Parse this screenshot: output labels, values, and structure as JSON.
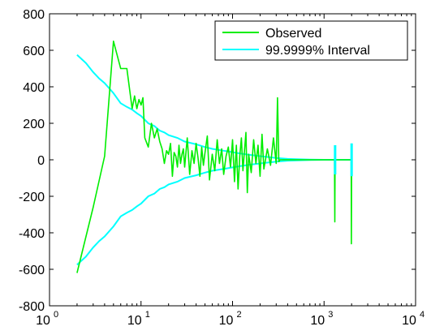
{
  "chart_data": {
    "type": "line",
    "title": "",
    "xlabel": "",
    "ylabel": "",
    "xscale": "log",
    "xlim": [
      1,
      10000
    ],
    "ylim": [
      -800,
      800
    ],
    "grid": false,
    "legend_position": "top-right",
    "x_ticks": [
      {
        "value": 1,
        "base": "10",
        "exp": "0"
      },
      {
        "value": 10,
        "base": "10",
        "exp": "1"
      },
      {
        "value": 100,
        "base": "10",
        "exp": "2"
      },
      {
        "value": 1000,
        "base": "10",
        "exp": "3"
      },
      {
        "value": 10000,
        "base": "10",
        "exp": "4"
      }
    ],
    "y_ticks": [
      {
        "value": 800,
        "label": "800"
      },
      {
        "value": 600,
        "label": "600"
      },
      {
        "value": 400,
        "label": "400"
      },
      {
        "value": 200,
        "label": "200"
      },
      {
        "value": 0,
        "label": "0"
      },
      {
        "value": -200,
        "label": "-200"
      },
      {
        "value": -400,
        "label": "-400"
      },
      {
        "value": -600,
        "label": "-600"
      },
      {
        "value": -800,
        "label": "-800"
      }
    ],
    "series": [
      {
        "name": "Observed",
        "color": "#00ee00",
        "x": [
          2,
          3,
          4,
          5,
          6,
          7,
          8,
          8.5,
          9,
          9.5,
          10,
          10.5,
          11,
          12,
          13,
          14,
          15,
          16,
          17,
          18,
          19,
          20,
          21,
          22,
          23,
          24,
          25,
          26,
          27,
          28,
          29,
          30,
          32,
          34,
          36,
          38,
          40,
          42,
          44,
          46,
          48,
          50,
          53,
          56,
          60,
          64,
          68,
          72,
          76,
          80,
          85,
          90,
          95,
          100,
          105,
          110,
          115,
          120,
          125,
          130,
          135,
          140,
          145,
          150,
          160,
          170,
          180,
          190,
          200,
          210,
          220,
          240,
          260,
          280,
          300,
          310,
          320,
          330,
          340,
          345,
          350,
          400,
          500,
          600,
          800,
          1000,
          1200,
          1300,
          1310,
          1320,
          1330,
          1340,
          1350,
          1360,
          1400,
          1600,
          1800,
          1980,
          1990,
          2000,
          2010,
          2020,
          2030,
          2040,
          2050
        ],
        "y": [
          -620,
          -260,
          20,
          650,
          500,
          500,
          280,
          350,
          280,
          330,
          300,
          340,
          120,
          70,
          200,
          120,
          170,
          100,
          60,
          -20,
          50,
          30,
          90,
          -90,
          40,
          20,
          -40,
          80,
          -20,
          30,
          60,
          -40,
          120,
          -80,
          50,
          -20,
          90,
          10,
          -90,
          70,
          -30,
          40,
          130,
          -110,
          30,
          -60,
          110,
          -20,
          60,
          -80,
          20,
          70,
          -40,
          110,
          -120,
          80,
          -160,
          20,
          120,
          -60,
          50,
          150,
          -180,
          30,
          -70,
          110,
          -20,
          80,
          -90,
          140,
          -50,
          60,
          -30,
          120,
          -20,
          340,
          -10,
          0,
          0,
          0,
          0,
          0,
          0,
          0,
          0,
          0,
          0,
          0,
          -340,
          0,
          0,
          0,
          0,
          0,
          0,
          0,
          0,
          0,
          -460,
          0,
          0,
          0,
          0,
          0,
          0
        ]
      },
      {
        "name": "99.9999% Interval",
        "color": "#00ffff",
        "x": [
          2,
          2.5,
          3,
          3.5,
          4,
          5,
          6,
          7,
          8,
          9,
          10,
          12,
          14,
          16,
          18,
          20,
          25,
          30,
          40,
          50,
          60,
          80,
          100,
          120,
          150,
          200,
          250,
          300,
          350,
          400,
          500,
          700,
          1000,
          1300,
          1500,
          2000
        ],
        "y_upper": [
          575,
          530,
          480,
          445,
          420,
          365,
          310,
          290,
          275,
          255,
          240,
          200,
          185,
          160,
          150,
          135,
          120,
          100,
          85,
          70,
          60,
          50,
          42,
          35,
          28,
          20,
          14,
          10,
          7,
          5,
          3,
          1,
          0,
          0,
          0,
          0
        ],
        "y_lower": [
          -575,
          -530,
          -480,
          -445,
          -420,
          -365,
          -310,
          -290,
          -275,
          -255,
          -240,
          -200,
          -185,
          -160,
          -150,
          -135,
          -120,
          -100,
          -85,
          -70,
          -60,
          -50,
          -42,
          -35,
          -28,
          -20,
          -14,
          -10,
          -7,
          -5,
          -3,
          -1,
          0,
          0,
          0,
          0
        ],
        "spikes": [
          {
            "x": 1320,
            "y_top": 80,
            "y_bottom": -80
          },
          {
            "x": 2000,
            "y_top": 90,
            "y_bottom": -90
          }
        ]
      }
    ]
  }
}
